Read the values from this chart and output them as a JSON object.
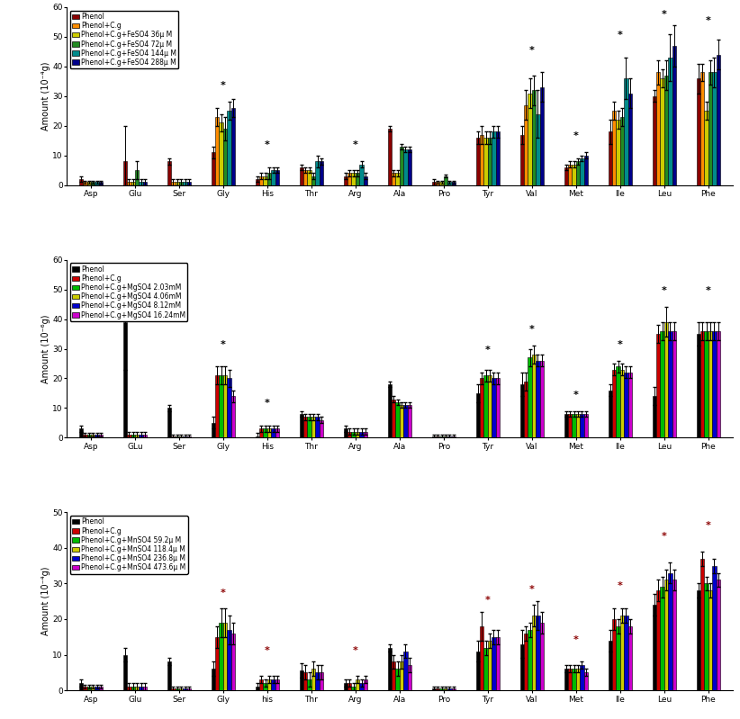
{
  "categories": [
    "Asp",
    "Glu",
    "Ser",
    "Gly",
    "His",
    "Thr",
    "Arg",
    "Ala",
    "Pro",
    "Tyr",
    "Val",
    "Met",
    "Ile",
    "Leu",
    "Phe"
  ],
  "panel1": {
    "ylabel": "Amount (10⁻⁴g)",
    "ylim": [
      0,
      60
    ],
    "yticks": [
      0,
      10,
      20,
      30,
      40,
      50,
      60
    ],
    "legend_labels": [
      "Phenol",
      "Phenol+C.g",
      "Phenol+C.g+FeSO4 36μ M",
      "Phenol+C.g+FeSO4 72μ M",
      "Phenol+C.g+FeSO4 144μ M",
      "Phenol+C.g+FeSO4 288μ M"
    ],
    "colors": [
      "#8B0000",
      "#FF8C00",
      "#CCCC00",
      "#228B22",
      "#008B8B",
      "#00008B"
    ],
    "bar_values": [
      [
        2,
        8,
        8,
        11,
        2,
        6,
        3,
        19,
        1,
        16,
        17,
        6,
        18,
        30,
        36
      ],
      [
        1,
        1,
        1,
        23,
        3,
        5,
        4,
        4,
        1,
        17,
        27,
        7,
        25,
        38,
        38
      ],
      [
        1,
        1,
        1,
        21,
        3,
        5,
        4,
        4,
        1,
        16,
        31,
        7,
        22,
        36,
        25
      ],
      [
        1,
        5,
        1,
        19,
        4,
        3,
        4,
        13,
        3,
        16,
        32,
        8,
        23,
        37,
        38
      ],
      [
        1,
        1,
        1,
        25,
        5,
        8,
        7,
        12,
        1,
        18,
        24,
        9,
        36,
        43,
        38
      ],
      [
        1,
        1,
        1,
        26,
        5,
        8,
        3,
        12,
        1,
        18,
        33,
        10,
        31,
        47,
        44
      ]
    ],
    "errors": [
      [
        1,
        12,
        1,
        2,
        1,
        1,
        1,
        1,
        1,
        2,
        3,
        1,
        4,
        2,
        5
      ],
      [
        0.5,
        1,
        1,
        3,
        1,
        1,
        1,
        1,
        0.5,
        3,
        5,
        1,
        3,
        4,
        3
      ],
      [
        0.5,
        1,
        1,
        3,
        1,
        1,
        1,
        1,
        0.5,
        2,
        5,
        1,
        3,
        3,
        3
      ],
      [
        0.5,
        3,
        1,
        4,
        2,
        1,
        1,
        1,
        0.5,
        2,
        5,
        1,
        3,
        5,
        4
      ],
      [
        0.5,
        1,
        1,
        3,
        1,
        2,
        1,
        1,
        0.5,
        2,
        8,
        1,
        7,
        8,
        5
      ],
      [
        0.5,
        1,
        1,
        3,
        1,
        1,
        1,
        1,
        0.5,
        2,
        5,
        1,
        5,
        7,
        5
      ]
    ],
    "star_positions": [
      {
        "cat_idx": 3,
        "y": 32,
        "color": "black"
      },
      {
        "cat_idx": 4,
        "y": 12,
        "color": "black"
      },
      {
        "cat_idx": 6,
        "y": 12,
        "color": "black"
      },
      {
        "cat_idx": 10,
        "y": 44,
        "color": "black"
      },
      {
        "cat_idx": 11,
        "y": 15,
        "color": "black"
      },
      {
        "cat_idx": 12,
        "y": 49,
        "color": "black"
      },
      {
        "cat_idx": 13,
        "y": 56,
        "color": "black"
      },
      {
        "cat_idx": 14,
        "y": 54,
        "color": "black"
      }
    ],
    "x_labels": [
      "Asp",
      "Glu",
      "Ser",
      "Gly",
      "His",
      "Thr",
      "Arg",
      "Ala",
      "Pro",
      "Tyr",
      "Val",
      "Met",
      "Ile",
      "Leu",
      "Phe"
    ],
    "legend_loc": "upper left"
  },
  "panel2": {
    "ylabel": "Amount (10⁻⁶g)",
    "ylim": [
      0,
      60
    ],
    "yticks": [
      0,
      10,
      20,
      30,
      40,
      50,
      60
    ],
    "legend_labels": [
      "Phenol",
      "Phenol+C.g",
      "Phenol+C.g+MgSO4 2.03mM",
      "Phenol+C.g+MgSO4 4.06mM",
      "Phenol+C.g+MgSO4 8.12mM",
      "Phenol+C.g+MgSO4 16.24mM"
    ],
    "colors": [
      "#000000",
      "#CC0000",
      "#00BB00",
      "#CCCC00",
      "#0000CC",
      "#CC00CC"
    ],
    "bar_values": [
      [
        3,
        39,
        10,
        5,
        0.5,
        8,
        3,
        18,
        0.5,
        15,
        18,
        8,
        16,
        14,
        35
      ],
      [
        1,
        1,
        0.5,
        21,
        3,
        7,
        2,
        13,
        0.5,
        20,
        19,
        8,
        23,
        35,
        36
      ],
      [
        1,
        1,
        0.5,
        21,
        3,
        7,
        2,
        12,
        0.5,
        21,
        27,
        8,
        24,
        36,
        36
      ],
      [
        1,
        1,
        0.5,
        21,
        3,
        7,
        2,
        11,
        0.5,
        21,
        28,
        8,
        23,
        39,
        36
      ],
      [
        1,
        1,
        0.5,
        20,
        3,
        7,
        2,
        11,
        0.5,
        20,
        26,
        8,
        22,
        36,
        36
      ],
      [
        1,
        1,
        0.5,
        14,
        3,
        6,
        2,
        11,
        0.5,
        20,
        26,
        8,
        22,
        36,
        36
      ]
    ],
    "errors": [
      [
        1,
        16,
        1,
        2,
        1,
        1,
        1,
        1,
        0.5,
        3,
        4,
        1,
        2,
        3,
        4
      ],
      [
        0.5,
        1,
        0.5,
        3,
        1,
        1,
        1,
        1,
        0.5,
        2,
        3,
        1,
        2,
        3,
        3
      ],
      [
        0.5,
        1,
        0.5,
        3,
        1,
        1,
        1,
        1,
        0.5,
        2,
        3,
        1,
        2,
        3,
        3
      ],
      [
        0.5,
        1,
        0.5,
        3,
        1,
        1,
        1,
        1,
        0.5,
        2,
        3,
        1,
        2,
        5,
        3
      ],
      [
        0.5,
        1,
        0.5,
        3,
        1,
        1,
        1,
        1,
        0.5,
        2,
        2,
        1,
        2,
        3,
        3
      ],
      [
        0.5,
        1,
        0.5,
        2,
        1,
        1,
        1,
        1,
        0.5,
        2,
        2,
        1,
        2,
        3,
        3
      ]
    ],
    "star_positions": [
      {
        "cat_idx": 3,
        "y": 30,
        "color": "black"
      },
      {
        "cat_idx": 4,
        "y": 10,
        "color": "black"
      },
      {
        "cat_idx": 9,
        "y": 28,
        "color": "black"
      },
      {
        "cat_idx": 10,
        "y": 35,
        "color": "black"
      },
      {
        "cat_idx": 11,
        "y": 13,
        "color": "black"
      },
      {
        "cat_idx": 12,
        "y": 30,
        "color": "black"
      },
      {
        "cat_idx": 13,
        "y": 48,
        "color": "black"
      },
      {
        "cat_idx": 14,
        "y": 48,
        "color": "black"
      }
    ],
    "x_labels": [
      "Asp",
      "GLu",
      "Ser",
      "Gly",
      "His",
      "Thr",
      "Arg",
      "Ala",
      "Pro",
      "Tyr",
      "Val",
      "Met",
      "Ile",
      "Leu",
      "Phe"
    ],
    "legend_loc": "upper left"
  },
  "panel3": {
    "ylabel": "Amount (10⁻⁴g)",
    "ylim": [
      0,
      50
    ],
    "yticks": [
      0,
      10,
      20,
      30,
      40,
      50
    ],
    "legend_labels": [
      "Phenol",
      "Phenol+C.g",
      "Phenol+C.g+MnSO4 59.2μ M",
      "Phenol+C.g+MnSO4 118.4μ M",
      "Phenol+C.g+MnSO4 236.8μ M",
      "Phenol+C.g+MnSO4 473.6μ M"
    ],
    "colors": [
      "#000000",
      "#CC0000",
      "#00BB00",
      "#CCCC00",
      "#0000CC",
      "#CC00CC"
    ],
    "bar_values": [
      [
        2,
        10,
        8,
        6,
        1,
        5.5,
        2,
        12,
        0.5,
        11,
        13,
        6,
        14,
        24,
        28
      ],
      [
        1,
        1,
        0.5,
        15,
        3,
        5,
        2,
        8,
        0.5,
        18,
        16,
        6,
        20,
        28,
        37
      ],
      [
        1,
        1,
        0.5,
        19,
        2,
        3,
        1,
        6,
        0.5,
        12,
        17,
        6,
        18,
        29,
        30
      ],
      [
        1,
        1,
        0.5,
        19,
        3,
        6,
        3,
        8,
        0.5,
        14,
        21,
        6,
        21,
        31,
        28
      ],
      [
        1,
        1,
        0.5,
        17,
        3,
        5,
        2,
        11,
        0.5,
        15,
        21,
        7,
        21,
        33,
        35
      ],
      [
        1,
        1,
        0.5,
        16,
        3,
        5,
        3,
        7,
        0.5,
        15,
        19,
        5,
        18,
        31,
        31
      ]
    ],
    "errors": [
      [
        1,
        2,
        1,
        2,
        1,
        2,
        1,
        1,
        0.5,
        3,
        4,
        1,
        3,
        3,
        2
      ],
      [
        0.5,
        1,
        0.5,
        3,
        1,
        2,
        1,
        2,
        0.5,
        4,
        2,
        1,
        3,
        3,
        2
      ],
      [
        0.5,
        1,
        0.5,
        4,
        1,
        2,
        1,
        2,
        0.5,
        2,
        2,
        1,
        2,
        3,
        2
      ],
      [
        0.5,
        1,
        0.5,
        4,
        1,
        2,
        1,
        2,
        0.5,
        2,
        3,
        1,
        2,
        3,
        2
      ],
      [
        0.5,
        1,
        0.5,
        4,
        1,
        2,
        1,
        2,
        0.5,
        2,
        4,
        1,
        2,
        3,
        2
      ],
      [
        0.5,
        1,
        0.5,
        3,
        1,
        2,
        1,
        2,
        0.5,
        2,
        3,
        1,
        2,
        3,
        2
      ]
    ],
    "star_positions": [
      {
        "cat_idx": 3,
        "y": 26,
        "color": "darkred"
      },
      {
        "cat_idx": 4,
        "y": 10,
        "color": "darkred"
      },
      {
        "cat_idx": 6,
        "y": 10,
        "color": "darkred"
      },
      {
        "cat_idx": 9,
        "y": 24,
        "color": "darkred"
      },
      {
        "cat_idx": 10,
        "y": 27,
        "color": "darkred"
      },
      {
        "cat_idx": 11,
        "y": 13,
        "color": "darkred"
      },
      {
        "cat_idx": 12,
        "y": 28,
        "color": "darkred"
      },
      {
        "cat_idx": 13,
        "y": 42,
        "color": "darkred"
      },
      {
        "cat_idx": 14,
        "y": 45,
        "color": "darkred"
      }
    ],
    "x_labels": [
      "Asp",
      "Glu",
      "Ser",
      "Gly",
      "his",
      "Thr",
      "Arg",
      "Ala",
      "Pro",
      "Tyr",
      "Val",
      "Met",
      "Ile",
      "Leu",
      "Phe"
    ],
    "legend_loc": "upper left"
  }
}
